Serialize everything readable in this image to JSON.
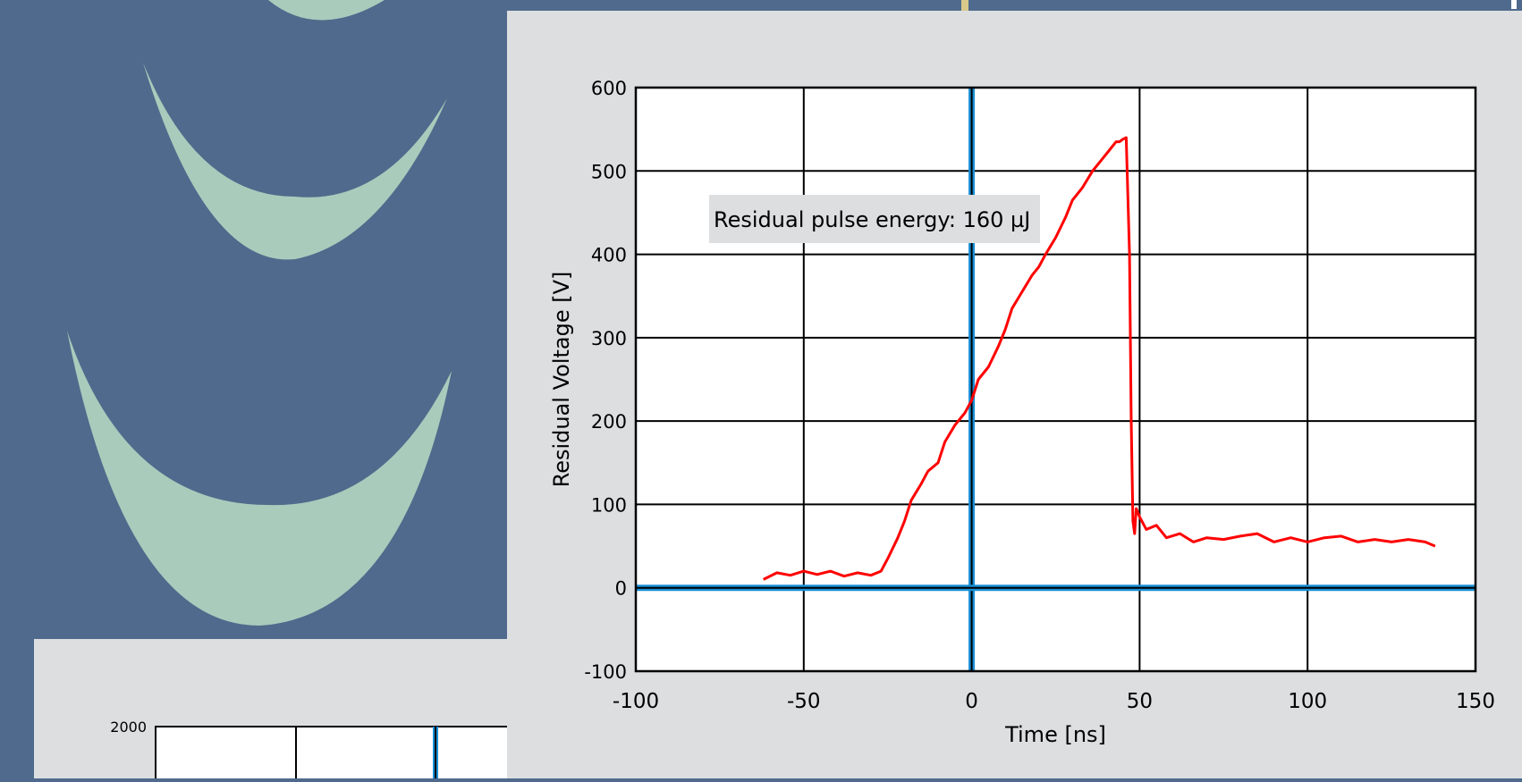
{
  "chart_data": [
    {
      "type": "line",
      "title": "",
      "xlabel": "Time [ns]",
      "ylabel": "Residual Voltage [V]",
      "xlim": [
        -100,
        150
      ],
      "ylim": [
        -100,
        600
      ],
      "x_ticks": [
        -100,
        -50,
        0,
        50,
        100,
        150
      ],
      "y_ticks": [
        -100,
        0,
        100,
        200,
        300,
        400,
        500,
        600
      ],
      "grid": true,
      "annotation": "Residual pulse energy: 160 µJ",
      "colors": {
        "series": "#ff0000",
        "reference_lines": "#1a8fd6",
        "grid": "#000000",
        "plot_bg": "#ffffff",
        "panel_bg": "#dcdee0"
      },
      "series": [
        {
          "x": [
            -62,
            -58,
            -54,
            -50,
            -46,
            -42,
            -38,
            -34,
            -30,
            -27,
            -25,
            -22,
            -20,
            -18,
            -15,
            -13,
            -10,
            -8,
            -5,
            -2,
            0,
            2,
            5,
            8,
            10,
            12,
            15,
            18,
            20,
            22,
            25,
            28,
            30,
            33,
            36,
            39,
            41,
            43,
            44,
            45,
            46,
            47,
            47.5,
            48,
            48.5,
            49,
            50,
            52,
            55,
            58,
            62,
            66,
            70,
            75,
            80,
            85,
            90,
            95,
            100,
            105,
            110,
            115,
            120,
            125,
            130,
            135,
            138
          ],
          "y": [
            10,
            18,
            15,
            20,
            16,
            20,
            14,
            18,
            15,
            20,
            35,
            60,
            80,
            105,
            125,
            140,
            150,
            175,
            195,
            210,
            225,
            250,
            265,
            290,
            310,
            335,
            355,
            375,
            385,
            400,
            420,
            445,
            465,
            480,
            500,
            515,
            525,
            535,
            535,
            538,
            540,
            400,
            200,
            80,
            65,
            95,
            85,
            70,
            75,
            60,
            65,
            55,
            60,
            58,
            62,
            65,
            55,
            60,
            55,
            60,
            62,
            55,
            58,
            55,
            58,
            55,
            50
          ]
        }
      ]
    },
    {
      "type": "line",
      "y_ticks": [
        2000
      ]
    }
  ]
}
